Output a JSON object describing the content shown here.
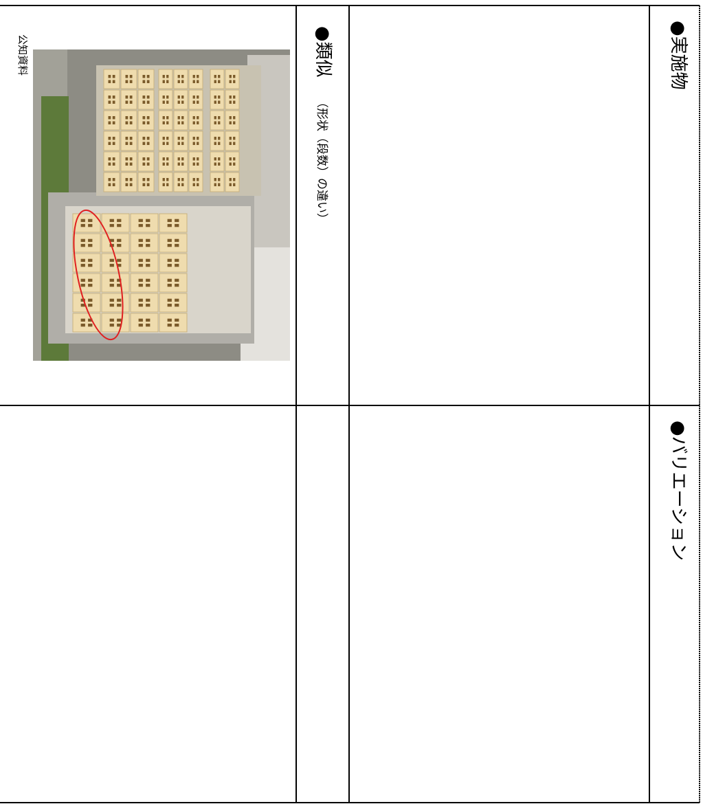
{
  "table": {
    "rows": [
      {
        "reference_label": "公知資料",
        "category": "●類似",
        "category_note": "（形状（段数）の違い）",
        "header": "●実施物"
      },
      {
        "header": "●バリエーション"
      }
    ]
  }
}
